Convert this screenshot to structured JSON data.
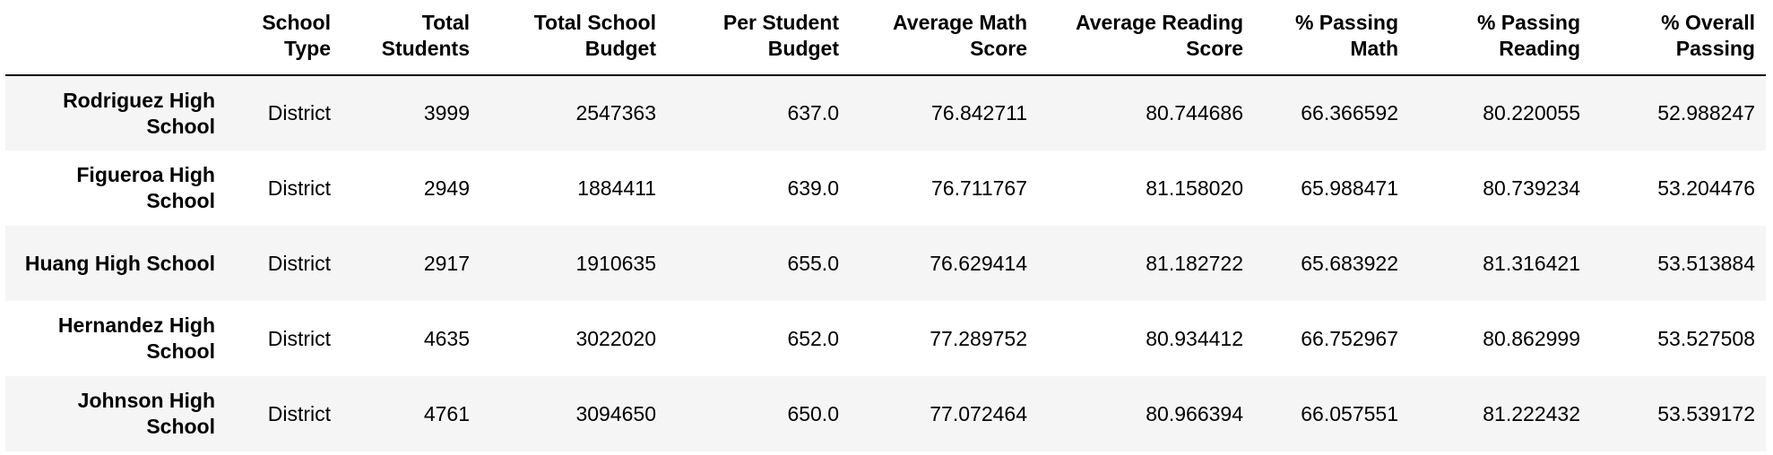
{
  "table": {
    "index_header": "",
    "columns": [
      "School Type",
      "Total Students",
      "Total School Budget",
      "Per Student Budget",
      "Average Math Score",
      "Average Reading Score",
      "% Passing Math",
      "% Passing Reading",
      "% Overall Passing"
    ],
    "rows": [
      {
        "school": "Rodriguez High School",
        "cells": [
          "District",
          "3999",
          "2547363",
          "637.0",
          "76.842711",
          "80.744686",
          "66.366592",
          "80.220055",
          "52.988247"
        ]
      },
      {
        "school": "Figueroa High School",
        "cells": [
          "District",
          "2949",
          "1884411",
          "639.0",
          "76.711767",
          "81.158020",
          "65.988471",
          "80.739234",
          "53.204476"
        ]
      },
      {
        "school": "Huang High School",
        "cells": [
          "District",
          "2917",
          "1910635",
          "655.0",
          "76.629414",
          "81.182722",
          "65.683922",
          "81.316421",
          "53.513884"
        ]
      },
      {
        "school": "Hernandez High School",
        "cells": [
          "District",
          "4635",
          "3022020",
          "652.0",
          "77.289752",
          "80.934412",
          "66.752967",
          "80.862999",
          "53.527508"
        ]
      },
      {
        "school": "Johnson High School",
        "cells": [
          "District",
          "4761",
          "3094650",
          "650.0",
          "77.072464",
          "80.966394",
          "66.057551",
          "81.222432",
          "53.539172"
        ]
      }
    ]
  }
}
